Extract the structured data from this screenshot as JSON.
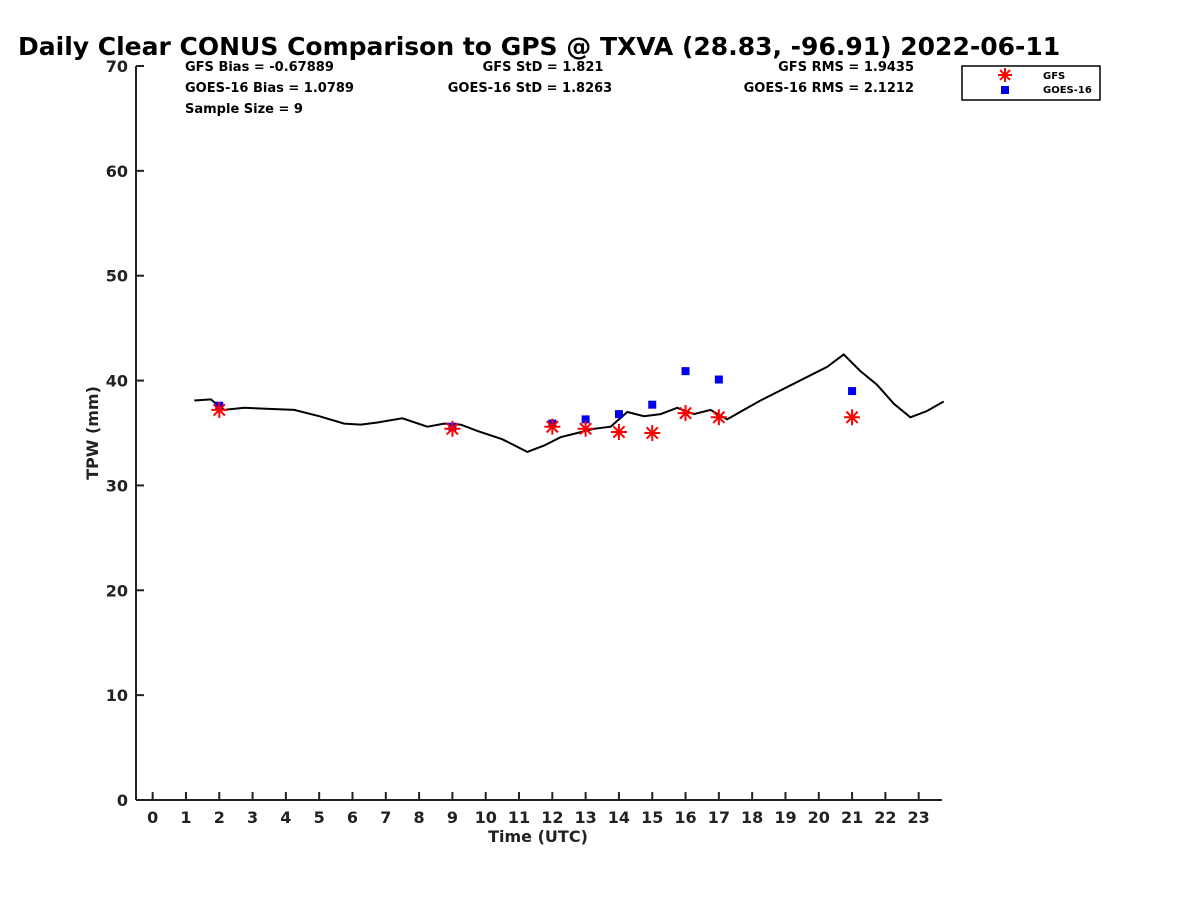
{
  "chart_data": {
    "type": "scatter",
    "title": "Daily Clear CONUS Comparison to GPS @ TXVA (28.83, -96.91) 2022-06-11",
    "xlabel": "Time (UTC)",
    "ylabel": "TPW (mm)",
    "xlim": [
      -0.5,
      23.7
    ],
    "ylim": [
      0,
      70
    ],
    "xticks": [
      0,
      1,
      2,
      3,
      4,
      5,
      6,
      7,
      8,
      9,
      10,
      11,
      12,
      13,
      14,
      15,
      16,
      17,
      18,
      19,
      20,
      21,
      22,
      23
    ],
    "yticks": [
      0,
      10,
      20,
      30,
      40,
      50,
      60,
      70
    ],
    "grid": false,
    "legend_position": "top-right",
    "stats": {
      "gfs_bias": "GFS Bias = -0.67889",
      "goes_bias": "GOES-16 Bias = 1.0789",
      "sample_size": "Sample Size = 9",
      "gfs_std": "GFS StD = 1.821",
      "goes_std": "GOES-16 StD = 1.8263",
      "gfs_rms": "GFS RMS = 1.9435",
      "goes_rms": "GOES-16 RMS = 2.1212"
    },
    "gps_line": {
      "color": "#000000",
      "x": [
        1.25,
        1.75,
        1.9,
        2.15,
        2.75,
        3.5,
        4.25,
        5.0,
        5.75,
        6.25,
        6.75,
        7.5,
        8.25,
        8.75,
        9.25,
        9.75,
        10.5,
        11.25,
        11.75,
        12.25,
        12.75,
        13.25,
        13.75,
        14.25,
        14.75,
        15.25,
        15.75,
        16.25,
        16.75,
        17.25,
        17.75,
        18.25,
        18.75,
        19.25,
        19.75,
        20.25,
        20.75,
        21.25,
        21.75,
        22.25,
        22.75,
        23.25,
        23.75
      ],
      "y": [
        38.1,
        38.2,
        37.8,
        37.2,
        37.4,
        37.3,
        37.2,
        36.6,
        35.9,
        35.8,
        36.0,
        36.4,
        35.6,
        35.9,
        35.8,
        35.2,
        34.4,
        33.2,
        33.8,
        34.6,
        35.0,
        35.4,
        35.6,
        37.0,
        36.6,
        36.8,
        37.4,
        36.8,
        37.2,
        36.3,
        37.2,
        38.1,
        38.9,
        39.7,
        40.5,
        41.3,
        42.5,
        40.9,
        39.6,
        37.8,
        36.5,
        37.1,
        38.0
      ]
    },
    "series": [
      {
        "name": "GFS",
        "marker": "asterisk",
        "color": "#ff0000",
        "x": [
          2,
          9,
          12,
          13,
          14,
          15,
          16,
          17,
          21
        ],
        "y": [
          37.2,
          35.4,
          35.6,
          35.4,
          35.1,
          35.0,
          36.9,
          36.5,
          36.5
        ]
      },
      {
        "name": "GOES-16",
        "marker": "square",
        "color": "#0000ee",
        "x": [
          2,
          9,
          12,
          13,
          14,
          15,
          16,
          17,
          21
        ],
        "y": [
          37.6,
          35.6,
          35.9,
          36.3,
          36.8,
          37.7,
          40.9,
          40.1,
          39.0
        ]
      }
    ]
  }
}
